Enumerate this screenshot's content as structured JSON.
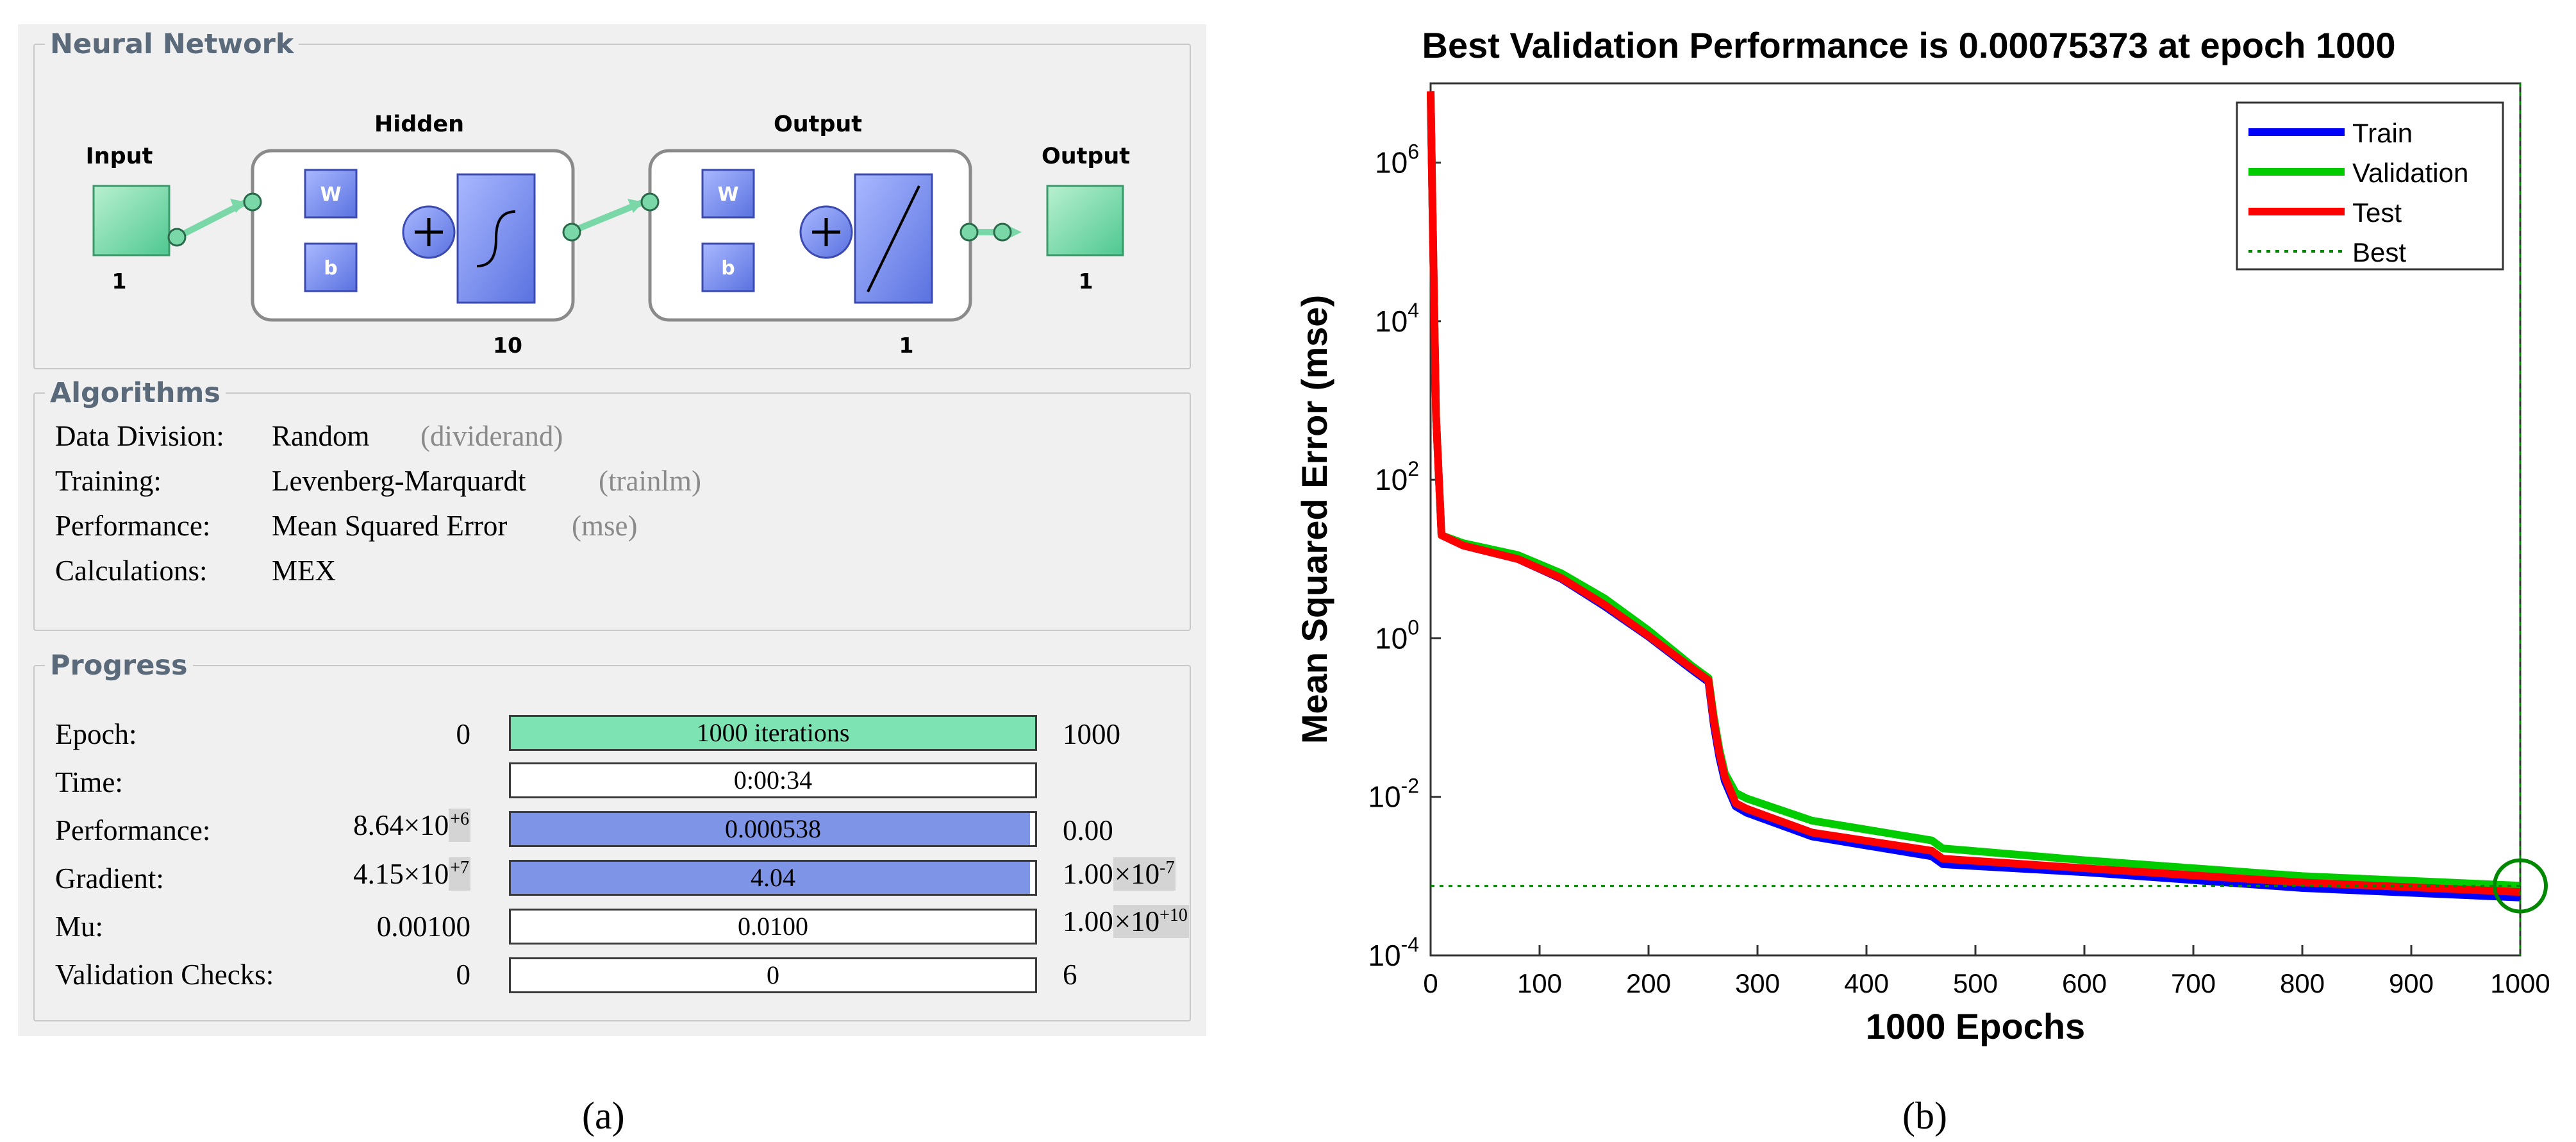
{
  "panel_a": {
    "neural_network": {
      "title": "Neural Network",
      "input_label": "Input",
      "input_size": "1",
      "hidden_label": "Hidden",
      "hidden_size": "10",
      "output_layer_label": "Output",
      "output_layer_size": "1",
      "output_label": "Output",
      "output_size": "1",
      "weight_symbol": "W",
      "bias_symbol": "b"
    },
    "algorithms": {
      "title": "Algorithms",
      "rows": [
        {
          "label": "Data Division:",
          "value": "Random",
          "fn": "(dividerand)"
        },
        {
          "label": "Training:",
          "value": "Levenberg-Marquardt",
          "fn": "(trainlm)"
        },
        {
          "label": "Performance:",
          "value": "Mean Squared Error",
          "fn": "(mse)"
        },
        {
          "label": "Calculations:",
          "value": "MEX",
          "fn": ""
        }
      ]
    },
    "progress": {
      "title": "Progress",
      "rows": [
        {
          "label": "Epoch:",
          "start": "0",
          "bar_text": "1000 iterations",
          "end": "1000",
          "fill": 1.0,
          "fill_color": "#7ee3b2"
        },
        {
          "label": "Time:",
          "start": "",
          "bar_text": "0:00:34",
          "end": "",
          "fill": 0.0,
          "fill_color": "#ffffff"
        },
        {
          "label": "Performance:",
          "start_mant": "8.64×10",
          "start_exp": "+6",
          "bar_text": "0.000538",
          "end": "0.00",
          "fill": 0.99,
          "fill_color": "#7e94e6"
        },
        {
          "label": "Gradient:",
          "start_mant": "4.15×10",
          "start_exp": "+7",
          "bar_text": "4.04",
          "end_mant": "1.00",
          "end_box": "×10",
          "end_exp": "-7",
          "fill": 0.99,
          "fill_color": "#7e94e6"
        },
        {
          "label": "Mu:",
          "start": "0.00100",
          "bar_text": "0.0100",
          "end_mant": "1.00",
          "end_box": "×10",
          "end_exp": "+10",
          "fill": 0.0,
          "fill_color": "#ffffff"
        },
        {
          "label": "Validation Checks:",
          "start": "0",
          "bar_text": "0",
          "end": "6",
          "fill": 0.0,
          "fill_color": "#ffffff"
        }
      ]
    },
    "caption": "(a)"
  },
  "panel_b": {
    "caption": "(b)",
    "chart_data": {
      "type": "line",
      "title": "Best Validation Performance is 0.00075373 at epoch 1000",
      "xlabel": "1000 Epochs",
      "ylabel": "Mean Squared Error  (mse)",
      "yscale": "log",
      "xlim": [
        0,
        1000
      ],
      "ylim_exp": [
        -4,
        7
      ],
      "xticks": [
        0,
        100,
        200,
        300,
        400,
        500,
        600,
        700,
        800,
        900,
        1000
      ],
      "yticks_exp": [
        -4,
        -2,
        0,
        2,
        4,
        6
      ],
      "legend_position": "top-right",
      "series": [
        {
          "name": "Train",
          "color": "#0000ff",
          "x": [
            0,
            2,
            5,
            10,
            30,
            80,
            120,
            160,
            200,
            240,
            255,
            260,
            265,
            270,
            280,
            290,
            350,
            460,
            470,
            600,
            800,
            1000
          ],
          "log10_y": [
            6.9,
            5.2,
            2.8,
            1.3,
            1.17,
            1.0,
            0.75,
            0.4,
            0.02,
            -0.4,
            -0.55,
            -1.1,
            -1.5,
            -1.8,
            -2.12,
            -2.2,
            -2.5,
            -2.75,
            -2.85,
            -2.95,
            -3.15,
            -3.27
          ]
        },
        {
          "name": "Validation",
          "color": "#00cc00",
          "x": [
            0,
            2,
            5,
            10,
            30,
            80,
            120,
            160,
            200,
            240,
            255,
            260,
            265,
            270,
            280,
            290,
            350,
            460,
            470,
            600,
            800,
            1000
          ],
          "log10_y": [
            6.9,
            5.2,
            2.8,
            1.3,
            1.2,
            1.05,
            0.82,
            0.5,
            0.1,
            -0.35,
            -0.5,
            -1.0,
            -1.4,
            -1.7,
            -1.95,
            -2.02,
            -2.3,
            -2.55,
            -2.65,
            -2.8,
            -3.0,
            -3.12
          ]
        },
        {
          "name": "Test",
          "color": "#ff0000",
          "x": [
            0,
            2,
            5,
            10,
            30,
            80,
            120,
            160,
            200,
            240,
            255,
            260,
            265,
            270,
            280,
            290,
            350,
            460,
            470,
            600,
            800,
            1000
          ],
          "log10_y": [
            6.9,
            5.2,
            2.8,
            1.3,
            1.17,
            1.0,
            0.76,
            0.42,
            0.03,
            -0.38,
            -0.53,
            -1.05,
            -1.45,
            -1.75,
            -2.08,
            -2.15,
            -2.45,
            -2.68,
            -2.78,
            -2.9,
            -3.08,
            -3.2
          ]
        }
      ],
      "best": {
        "name": "Best",
        "epoch": 1000,
        "value": 0.00075373,
        "log10_value": -3.123,
        "color": "#008800"
      }
    }
  }
}
